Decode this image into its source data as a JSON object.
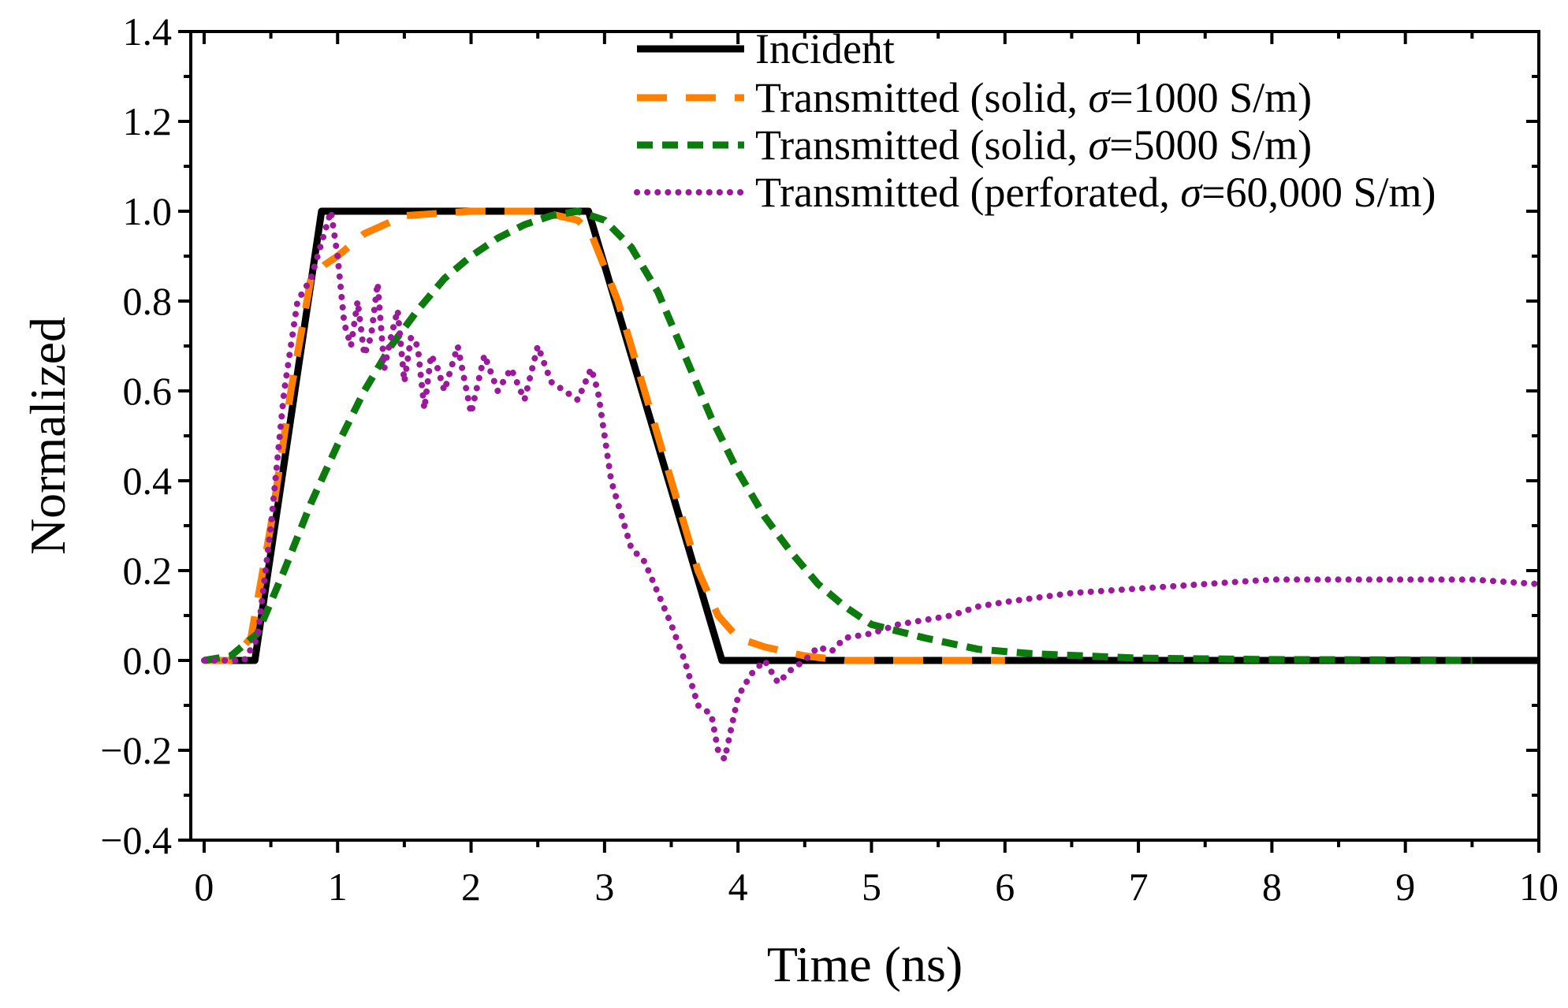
{
  "chart_data": {
    "type": "line",
    "title": "",
    "xlabel": "Time (ns)",
    "ylabel": "Normalized",
    "xlim": [
      -0.1,
      10
    ],
    "ylim": [
      -0.4,
      1.4
    ],
    "xticks": [
      0,
      1,
      2,
      3,
      4,
      5,
      6,
      7,
      8,
      9,
      10
    ],
    "yticks": [
      1.4,
      1.2,
      1.0,
      0.8,
      0.6,
      0.4,
      0.2,
      0.0,
      -0.2,
      -0.4
    ],
    "xtick_labels": [
      "0",
      "1",
      "2",
      "3",
      "4",
      "5",
      "6",
      "7",
      "8",
      "9",
      "10"
    ],
    "ytick_labels": [
      "1.4",
      "1.2",
      "1.0",
      "0.8",
      "0.6",
      "0.4",
      "0.2",
      "0.0",
      "−0.2",
      "−0.4"
    ],
    "grid": false,
    "legend_position": "top-right",
    "series": [
      {
        "name": "Incident",
        "legend_prefix": "Incident",
        "legend_sigma": "",
        "legend_suffix": "",
        "color": "#000000",
        "style": "solid",
        "x": [
          0,
          0.38,
          0.88,
          2.88,
          3.88,
          10
        ],
        "y": [
          0,
          0,
          1.0,
          1.0,
          0,
          0
        ]
      },
      {
        "name": "Transmitted (solid, σ=1000 S/m)",
        "legend_prefix": "Transmitted (solid, ",
        "legend_sigma": "σ",
        "legend_suffix": "=1000 S/m)",
        "color": "#ff8000",
        "style": "dashed",
        "x": [
          0,
          0.2,
          0.35,
          0.5,
          0.65,
          0.8,
          0.9,
          1.0,
          1.2,
          1.5,
          2.0,
          2.5,
          2.8,
          2.9,
          3.1,
          3.3,
          3.5,
          3.7,
          3.85,
          4.0,
          4.2,
          4.5,
          4.8,
          5.0,
          6.0
        ],
        "y": [
          0,
          0,
          0.05,
          0.3,
          0.6,
          0.85,
          0.88,
          0.9,
          0.95,
          0.99,
          1.0,
          1.0,
          0.98,
          0.95,
          0.8,
          0.6,
          0.4,
          0.2,
          0.1,
          0.05,
          0.03,
          0.01,
          0.0,
          0.0,
          0.0
        ]
      },
      {
        "name": "Transmitted (solid, σ=5000 S/m)",
        "legend_prefix": "Transmitted (solid, ",
        "legend_sigma": "σ",
        "legend_suffix": "=5000 S/m)",
        "color": "#0c7a0c",
        "style": "short-dashed",
        "x": [
          0,
          0.2,
          0.4,
          0.6,
          0.8,
          1.0,
          1.2,
          1.4,
          1.6,
          1.8,
          2.0,
          2.2,
          2.4,
          2.6,
          2.8,
          3.0,
          3.2,
          3.4,
          3.6,
          3.8,
          4.0,
          4.2,
          4.4,
          4.6,
          4.8,
          5.0,
          5.4,
          5.8,
          6.2,
          6.6,
          7.0,
          8.0,
          9.0,
          9.5
        ],
        "y": [
          0,
          0.01,
          0.06,
          0.2,
          0.35,
          0.48,
          0.6,
          0.7,
          0.78,
          0.85,
          0.9,
          0.94,
          0.97,
          0.99,
          1.0,
          0.98,
          0.92,
          0.82,
          0.68,
          0.54,
          0.42,
          0.32,
          0.24,
          0.17,
          0.12,
          0.08,
          0.05,
          0.025,
          0.015,
          0.01,
          0.005,
          0.002,
          0.001,
          0.0
        ]
      },
      {
        "name": "Transmitted (perforated, σ=60,000 S/m)",
        "legend_prefix": "Transmitted (perforated, ",
        "legend_sigma": "σ",
        "legend_suffix": "=60,000 S/m)",
        "color": "#9b1a9b",
        "style": "dotted",
        "x": [
          0,
          0.3,
          0.4,
          0.5,
          0.6,
          0.7,
          0.8,
          0.9,
          0.95,
          1.0,
          1.05,
          1.1,
          1.15,
          1.2,
          1.25,
          1.3,
          1.35,
          1.4,
          1.45,
          1.5,
          1.55,
          1.6,
          1.65,
          1.7,
          1.75,
          1.8,
          1.9,
          2.0,
          2.1,
          2.2,
          2.3,
          2.4,
          2.5,
          2.6,
          2.7,
          2.8,
          2.9,
          2.95,
          3.0,
          3.05,
          3.1,
          3.2,
          3.3,
          3.4,
          3.5,
          3.6,
          3.7,
          3.8,
          3.85,
          3.9,
          3.95,
          4.0,
          4.1,
          4.2,
          4.3,
          4.4,
          4.5,
          4.6,
          4.7,
          4.8,
          5.0,
          5.2,
          5.4,
          5.6,
          5.8,
          6.0,
          6.5,
          7.0,
          7.5,
          8.0,
          8.5,
          9.0,
          9.5,
          10.0
        ],
        "y": [
          0,
          0.0,
          0.05,
          0.3,
          0.6,
          0.8,
          0.85,
          0.95,
          1.0,
          0.9,
          0.75,
          0.7,
          0.8,
          0.68,
          0.72,
          0.84,
          0.65,
          0.72,
          0.78,
          0.62,
          0.72,
          0.7,
          0.56,
          0.68,
          0.65,
          0.6,
          0.7,
          0.55,
          0.68,
          0.6,
          0.65,
          0.58,
          0.7,
          0.62,
          0.6,
          0.58,
          0.65,
          0.6,
          0.5,
          0.4,
          0.35,
          0.25,
          0.22,
          0.15,
          0.08,
          0.0,
          -0.1,
          -0.12,
          -0.2,
          -0.22,
          -0.15,
          -0.08,
          -0.03,
          0.0,
          -0.05,
          -0.02,
          0.0,
          0.03,
          0.02,
          0.05,
          0.06,
          0.08,
          0.09,
          0.1,
          0.12,
          0.13,
          0.15,
          0.16,
          0.17,
          0.18,
          0.18,
          0.18,
          0.18,
          0.17
        ]
      }
    ]
  }
}
